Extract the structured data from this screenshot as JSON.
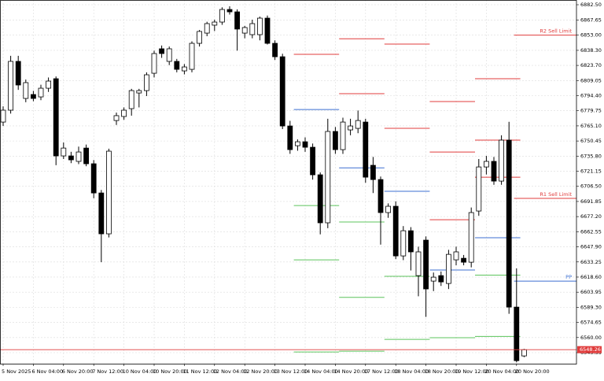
{
  "chart_data": {
    "type": "candlestick",
    "categories": [
      "5 Nov 2025",
      null,
      null,
      null,
      "6 Nov 04:00",
      null,
      null,
      null,
      "6 Nov 20:00",
      null,
      null,
      null,
      "7 Nov 12:00",
      null,
      null,
      null,
      "10 Nov 04:00",
      null,
      null,
      null,
      "10 Nov 20:00",
      null,
      null,
      null,
      "11 Nov 12:00",
      null,
      null,
      null,
      "12 Nov 04:00",
      null,
      null,
      null,
      "12 Nov 20:00",
      null,
      null,
      null,
      "13 Nov 12:00",
      null,
      null,
      null,
      "14 Nov 04:00",
      null,
      null,
      null,
      "14 Nov 20:00",
      null,
      null,
      null,
      "17 Nov 12:00",
      null,
      null,
      null,
      "18 Nov 04:00",
      null,
      null,
      null,
      "18 Nov 20:00",
      null,
      null,
      null,
      "19 Nov 12:00",
      null,
      null,
      null,
      "20 Nov 04:00",
      null,
      null,
      null,
      "20 Nov 20:00",
      null
    ],
    "ohlc": [
      [
        6768.8,
        6784,
        6765,
        6780.3
      ],
      [
        6780.3,
        6833,
        6777,
        6827.6
      ],
      [
        6827.6,
        6833,
        6800,
        6804.7
      ],
      [
        6791.7,
        6810,
        6788,
        6807.0
      ],
      [
        6795.5,
        6799,
        6789,
        6791.7
      ],
      [
        6793.2,
        6805,
        6790,
        6801.6
      ],
      [
        6801.6,
        6812,
        6798,
        6808.5
      ],
      [
        6810.8,
        6813,
        6727,
        6736.0
      ],
      [
        6736.0,
        6749,
        6733,
        6743.6
      ],
      [
        6736.0,
        6740,
        6729,
        6732.2
      ],
      [
        6730.7,
        6745,
        6728,
        6739.8
      ],
      [
        6743.6,
        6747,
        6726,
        6728.4
      ],
      [
        6728.4,
        6732,
        6695,
        6700.1
      ],
      [
        6700.1,
        6703,
        6633,
        6660.5
      ],
      [
        6660.5,
        6743,
        6657,
        6740.6
      ],
      [
        6770.3,
        6778,
        6766,
        6775.0
      ],
      [
        6774.2,
        6783,
        6771,
        6780.3
      ],
      [
        6781.8,
        6801,
        6775,
        6799.3
      ],
      [
        6797.0,
        6801,
        6783,
        6799.3
      ],
      [
        6799.3,
        6817,
        6794,
        6814.6
      ],
      [
        6816.1,
        6838,
        6812,
        6835.2
      ],
      [
        6839.8,
        6843,
        6831,
        6835.2
      ],
      [
        6827.6,
        6842,
        6824,
        6839.8
      ],
      [
        6827.6,
        6830,
        6817,
        6819.9
      ],
      [
        6818.4,
        6825,
        6815,
        6822.2
      ],
      [
        6819.9,
        6847,
        6817,
        6845.1
      ],
      [
        6845.1,
        6858,
        6842,
        6856.6
      ],
      [
        6855.0,
        6866,
        6852,
        6864.2
      ],
      [
        6862.7,
        6868,
        6857,
        6865.7
      ],
      [
        6865.7,
        6880,
        6863,
        6877.9
      ],
      [
        6877.9,
        6881,
        6873,
        6875.6
      ],
      [
        6875.6,
        6878,
        6838,
        6858.9
      ],
      [
        6855.0,
        6862,
        6850,
        6860.4
      ],
      [
        6853.5,
        6868,
        6850,
        6864.2
      ],
      [
        6853.5,
        6871,
        6848,
        6869.5
      ],
      [
        6869.5,
        6872,
        6844,
        6845.1
      ],
      [
        6845.1,
        6848,
        6829,
        6832.1
      ],
      [
        6832.1,
        6835,
        6762,
        6765.0
      ],
      [
        6765.0,
        6770,
        6738,
        6742.1
      ],
      [
        6745.9,
        6752,
        6741,
        6749.7
      ],
      [
        6749.7,
        6754,
        6740,
        6744.4
      ],
      [
        6744.4,
        6748,
        6713,
        6717.7
      ],
      [
        6717.7,
        6720,
        6660,
        6671.2
      ],
      [
        6671.2,
        6772,
        6666,
        6759.7
      ],
      [
        6759.7,
        6764,
        6738,
        6742.1
      ],
      [
        6742.1,
        6773,
        6738,
        6768.8
      ],
      [
        6761.2,
        6772,
        6756,
        6765.0
      ],
      [
        6762.7,
        6780,
        6758,
        6770.3
      ],
      [
        6768.8,
        6772,
        6710,
        6715.4
      ],
      [
        6726.9,
        6735,
        6700,
        6713.1
      ],
      [
        6713.1,
        6716,
        6650,
        6681.1
      ],
      [
        6681.1,
        6690,
        6676,
        6687.2
      ],
      [
        6687.2,
        6692,
        6636,
        6639.1
      ],
      [
        6639.1,
        6668,
        6635,
        6663.5
      ],
      [
        6663.5,
        6667,
        6625,
        6643.0
      ],
      [
        6620.0,
        6648,
        6600,
        6643.0
      ],
      [
        6654.4,
        6658,
        6580,
        6607.1
      ],
      [
        6614.7,
        6623,
        6605,
        6618.5
      ],
      [
        6620.0,
        6624,
        6610,
        6613.9
      ],
      [
        6612.4,
        6645,
        6607,
        6640.6
      ],
      [
        6635.3,
        6648,
        6630,
        6643.0
      ],
      [
        6636.8,
        6640,
        6630,
        6633.0
      ],
      [
        6633.0,
        6686,
        6628,
        6681.1
      ],
      [
        6682.6,
        6733,
        6678,
        6725.3
      ],
      [
        6725.3,
        6736,
        6718,
        6730.7
      ],
      [
        6730.7,
        6735,
        6708,
        6711.6
      ],
      [
        6711.6,
        6756,
        6708,
        6751.3
      ],
      [
        6751.3,
        6769,
        6583,
        6589.5
      ],
      [
        6589.5,
        6627,
        6536,
        6537.6
      ],
      [
        6542.2,
        6549,
        6541,
        6548.2
      ]
    ],
    "up_color": "#ffffff",
    "down_color": "#000000",
    "resistance_color": "#e03c3c",
    "pivot_color": "#3c6fd0",
    "support_color": "#5cc45c",
    "levels": [
      {
        "resistance": [
          6834.4
        ],
        "pivot": 6781.0,
        "support": [
          6687.9,
          6635.3,
          6546.0
        ]
      },
      {
        "resistance": [
          6849.5,
          6796.3
        ],
        "pivot": 6724.4,
        "support": [
          6672.0,
          6598.9,
          6546.8
        ]
      },
      {
        "resistance": [
          6844.4,
          6762.7
        ],
        "pivot": 6701.7,
        "support": [
          6619.3,
          6558.2
        ]
      },
      {
        "resistance": [
          6788.7,
          6739.8,
          6674.2
        ],
        "pivot": 6625.4,
        "support": [
          6559.8
        ]
      },
      {
        "resistance": [
          6810.8,
          6751.3,
          6715.4
        ],
        "pivot": 6656.7,
        "support": [
          6620.5,
          6561.1
        ]
      }
    ],
    "limits": [
      {
        "label": "R2 Sell Limit",
        "value": 6853.0,
        "color": "#e03c3c"
      },
      {
        "label": "R1 Sell Limit",
        "value": 6694.9,
        "color": "#e03c3c"
      },
      {
        "label": "PP",
        "value": 6614.7,
        "color": "#3c6fd0"
      }
    ],
    "current_price": {
      "value": 6548.26,
      "label": "6548.26",
      "color": "#e03c3c"
    },
    "ylim": [
      6534.67,
      6887.08
    ],
    "yticks": [
      {
        "value": 6882.5,
        "label": "6882.50"
      },
      6867.65,
      {
        "value": 6853,
        "label": "6853.00"
      },
      {
        "value": 6838.3,
        "label": "6838.30"
      },
      {
        "value": 6823.7,
        "label": "6823.70"
      },
      6809.05,
      {
        "value": 6794.4,
        "label": "6794.40"
      },
      6779.75,
      {
        "value": 6765.1,
        "label": "6765.10"
      },
      6750.45,
      {
        "value": 6735.8,
        "label": "6735.80"
      },
      6721.15,
      {
        "value": 6706.5,
        "label": "6706.50"
      },
      6691.85,
      {
        "value": 6677.2,
        "label": "6677.20"
      },
      6662.55,
      {
        "value": 6647.9,
        "label": "6647.90"
      },
      6633.25,
      {
        "value": 6618.6,
        "label": "6618.60"
      },
      6603.95,
      {
        "value": 6589.3,
        "label": "6589.30"
      },
      6574.65,
      {
        "value": 6560,
        "label": "6560.00"
      },
      6545.35
    ],
    "grid": true
  }
}
